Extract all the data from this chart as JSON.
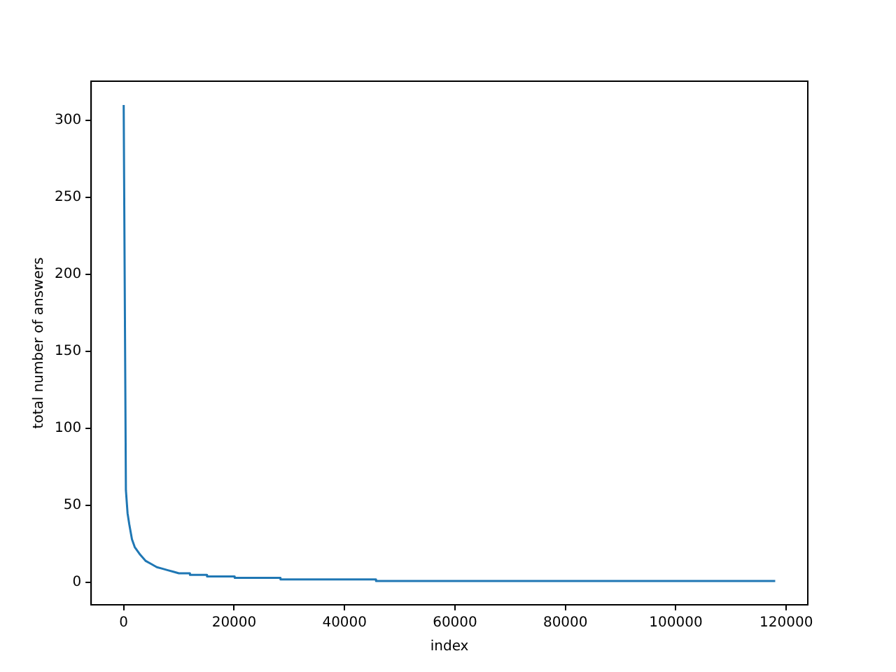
{
  "chart_data": {
    "type": "line",
    "xlabel": "index",
    "ylabel": "total number of answers",
    "x": [
      0,
      400,
      700,
      1000,
      1500,
      2000,
      3000,
      4000,
      5000,
      6000,
      7000,
      8000,
      9000,
      10000,
      12000,
      12000,
      15100,
      15100,
      20100,
      20100,
      28400,
      28400,
      45700,
      45700,
      118000
    ],
    "series": [
      {
        "color": "#1f77b4",
        "values": [
          310,
          60,
          45,
          38,
          28,
          23,
          18,
          14,
          12,
          10,
          9,
          8,
          7,
          6,
          6,
          5,
          5,
          4,
          4,
          3,
          3,
          2,
          2,
          1,
          1
        ]
      }
    ],
    "xlim": [
      -5900,
      123900
    ],
    "xticks": [
      0,
      20000,
      40000,
      60000,
      80000,
      100000,
      120000
    ],
    "ylim": [
      -14.45,
      325.45
    ],
    "yticks": [
      0,
      50,
      100,
      150,
      200,
      250,
      300
    ],
    "grid": false,
    "legend": false,
    "marker": "none",
    "line_style": "solid"
  }
}
